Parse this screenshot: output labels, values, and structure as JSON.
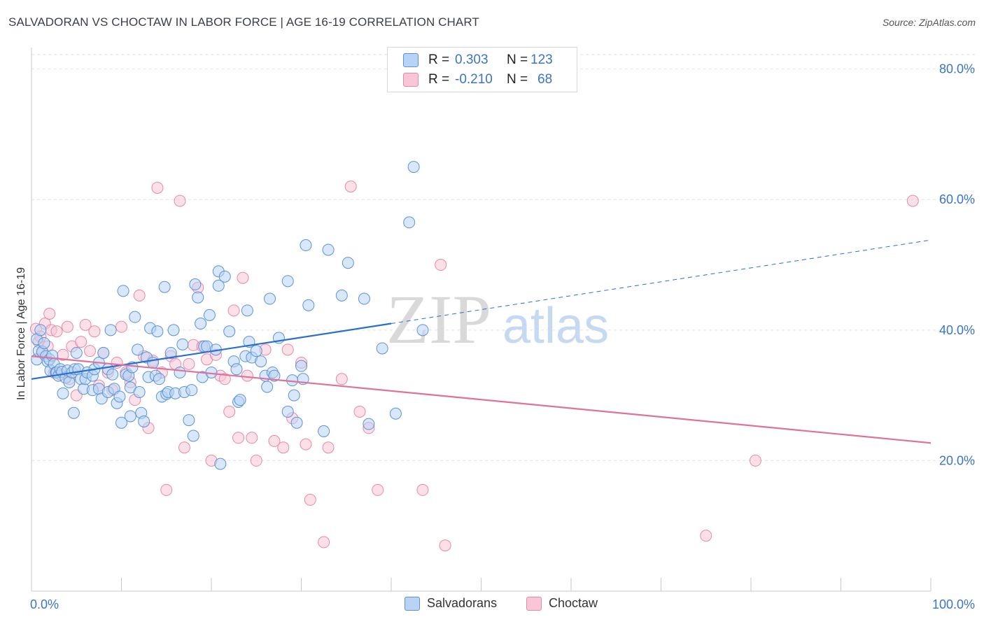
{
  "title": "SALVADORAN VS CHOCTAW IN LABOR FORCE | AGE 16-19 CORRELATION CHART",
  "source": "Source: ZipAtlas.com",
  "watermark": {
    "zip": "ZIP",
    "atlas": "atlas"
  },
  "colors": {
    "blue_fill": "#b8d3f5",
    "blue_stroke": "#5b93d6",
    "blue_line": "#2a6fcf",
    "pink_fill": "#f8c6d6",
    "pink_stroke": "#e48aa9",
    "pink_line": "#e0719a",
    "tick_label": "#3a74c9",
    "grid": "#e2e2e2"
  },
  "legend": {
    "rows": [
      {
        "r_label": "R =",
        "r_value": "0.303",
        "n_label": "N =",
        "n_value": "123",
        "color": "blue"
      },
      {
        "r_label": "R =",
        "r_value": "-0.210",
        "n_label": "N =",
        "n_value": "68",
        "color": "pink"
      }
    ],
    "bottom": [
      {
        "label": "Salvadorans",
        "color": "blue"
      },
      {
        "label": "Choctaw",
        "color": "pink"
      }
    ]
  },
  "chart_data": {
    "type": "scatter",
    "title": "SALVADORAN VS CHOCTAW IN LABOR FORCE | AGE 16-19 CORRELATION CHART",
    "xlabel": "",
    "ylabel": "In Labor Force | Age 16-19",
    "xlim": [
      0,
      100
    ],
    "ylim": [
      0,
      82
    ],
    "x_tick_labels": [
      {
        "value": 0,
        "label": "0.0%"
      },
      {
        "value": 100,
        "label": "100.0%"
      }
    ],
    "y_tick_labels": [
      {
        "value": 20,
        "label": "20.0%"
      },
      {
        "value": 40,
        "label": "40.0%"
      },
      {
        "value": 60,
        "label": "60.0%"
      },
      {
        "value": 80,
        "label": "80.0%"
      }
    ],
    "grid": true,
    "series": [
      {
        "name": "Salvadorans",
        "color": "blue",
        "trend": {
          "x0": 0,
          "y0": 32.5,
          "x1": 40,
          "y1": 41,
          "dashed_to_x": 100,
          "dashed_to_y": 53.8
        },
        "points": [
          [
            0.6,
            38.6
          ],
          [
            0.6,
            35.5
          ],
          [
            0.8,
            36.8
          ],
          [
            1.0,
            40.0
          ],
          [
            1.2,
            36.7
          ],
          [
            1.4,
            38.0
          ],
          [
            1.6,
            36.0
          ],
          [
            1.8,
            35.2
          ],
          [
            2.0,
            35.5
          ],
          [
            2.1,
            33.8
          ],
          [
            2.3,
            36.1
          ],
          [
            2.5,
            34.8
          ],
          [
            2.7,
            33.5
          ],
          [
            2.8,
            33.5
          ],
          [
            3.0,
            33.0
          ],
          [
            3.2,
            34.0
          ],
          [
            3.4,
            33.6
          ],
          [
            3.5,
            30.3
          ],
          [
            3.8,
            32.7
          ],
          [
            4.0,
            33.8
          ],
          [
            4.2,
            32.0
          ],
          [
            4.5,
            33.5
          ],
          [
            4.7,
            27.3
          ],
          [
            4.8,
            34.0
          ],
          [
            5.0,
            36.5
          ],
          [
            5.2,
            34.0
          ],
          [
            5.5,
            32.5
          ],
          [
            5.8,
            31.0
          ],
          [
            6.0,
            32.5
          ],
          [
            6.2,
            33.5
          ],
          [
            6.8,
            33.0
          ],
          [
            6.8,
            30.8
          ],
          [
            7.0,
            34.0
          ],
          [
            7.5,
            35.0
          ],
          [
            7.5,
            31.0
          ],
          [
            7.8,
            29.5
          ],
          [
            8.0,
            36.5
          ],
          [
            8.5,
            30.5
          ],
          [
            8.5,
            34.0
          ],
          [
            8.8,
            40.0
          ],
          [
            9.0,
            33.2
          ],
          [
            9.2,
            31.0
          ],
          [
            9.5,
            28.8
          ],
          [
            9.8,
            29.8
          ],
          [
            10.0,
            25.8
          ],
          [
            10.2,
            46.0
          ],
          [
            10.5,
            33.2
          ],
          [
            10.8,
            33.0
          ],
          [
            11.0,
            26.8
          ],
          [
            11.0,
            31.2
          ],
          [
            11.2,
            34.3
          ],
          [
            11.5,
            42.0
          ],
          [
            11.8,
            37.0
          ],
          [
            12.0,
            30.5
          ],
          [
            12.2,
            27.3
          ],
          [
            12.5,
            26.0
          ],
          [
            12.8,
            35.8
          ],
          [
            13.0,
            32.8
          ],
          [
            13.2,
            40.3
          ],
          [
            13.5,
            35.0
          ],
          [
            13.8,
            33.0
          ],
          [
            14.0,
            39.8
          ],
          [
            14.2,
            32.5
          ],
          [
            14.5,
            29.8
          ],
          [
            14.8,
            46.6
          ],
          [
            15.0,
            30.2
          ],
          [
            15.2,
            30.5
          ],
          [
            15.5,
            36.5
          ],
          [
            15.8,
            40.0
          ],
          [
            16.0,
            30.3
          ],
          [
            16.5,
            33.5
          ],
          [
            16.8,
            37.8
          ],
          [
            17.0,
            30.5
          ],
          [
            17.5,
            26.2
          ],
          [
            17.8,
            30.8
          ],
          [
            18.0,
            23.8
          ],
          [
            18.2,
            47.0
          ],
          [
            18.5,
            45.0
          ],
          [
            18.8,
            41.0
          ],
          [
            19.0,
            32.8
          ],
          [
            19.2,
            37.5
          ],
          [
            19.5,
            37.5
          ],
          [
            19.8,
            42.3
          ],
          [
            20.0,
            33.5
          ],
          [
            20.5,
            37.0
          ],
          [
            20.8,
            49.0
          ],
          [
            20.8,
            46.8
          ],
          [
            21.0,
            19.5
          ],
          [
            21.5,
            48.2
          ],
          [
            22.0,
            39.8
          ],
          [
            22.5,
            35.2
          ],
          [
            22.8,
            34.0
          ],
          [
            23.0,
            29.0
          ],
          [
            23.2,
            29.3
          ],
          [
            23.8,
            36.0
          ],
          [
            24.0,
            43.0
          ],
          [
            24.2,
            38.2
          ],
          [
            24.5,
            35.8
          ],
          [
            25.0,
            36.8
          ],
          [
            25.5,
            35.2
          ],
          [
            26.0,
            33.0
          ],
          [
            26.2,
            31.3
          ],
          [
            26.5,
            44.8
          ],
          [
            26.8,
            33.5
          ],
          [
            27.0,
            33.0
          ],
          [
            27.5,
            38.8
          ],
          [
            28.5,
            47.5
          ],
          [
            28.5,
            27.5
          ],
          [
            29.0,
            32.3
          ],
          [
            29.2,
            30.0
          ],
          [
            29.5,
            25.8
          ],
          [
            30.0,
            34.5
          ],
          [
            30.2,
            32.5
          ],
          [
            30.5,
            53.0
          ],
          [
            30.8,
            43.8
          ],
          [
            32.5,
            24.5
          ],
          [
            33.0,
            52.3
          ],
          [
            34.5,
            45.3
          ],
          [
            35.2,
            50.3
          ],
          [
            37.0,
            44.8
          ],
          [
            37.5,
            25.6
          ],
          [
            39.0,
            37.2
          ],
          [
            40.5,
            27.2
          ],
          [
            42.0,
            56.5
          ],
          [
            42.5,
            65.0
          ],
          [
            43.5,
            40.0
          ]
        ]
      },
      {
        "name": "Choctaw",
        "color": "pink",
        "trend": {
          "x0": 0,
          "y0": 36.0,
          "x1": 100,
          "y1": 22.7
        },
        "points": [
          [
            0.5,
            40.2
          ],
          [
            0.8,
            38.2
          ],
          [
            1.0,
            39.0
          ],
          [
            1.2,
            36.5
          ],
          [
            1.5,
            41.0
          ],
          [
            1.8,
            37.5
          ],
          [
            2.0,
            42.5
          ],
          [
            2.2,
            40.0
          ],
          [
            2.5,
            33.5
          ],
          [
            2.8,
            39.8
          ],
          [
            3.2,
            33.2
          ],
          [
            3.5,
            36.2
          ],
          [
            4.0,
            40.5
          ],
          [
            4.2,
            32.5
          ],
          [
            4.5,
            37.5
          ],
          [
            5.0,
            30.0
          ],
          [
            5.5,
            38.2
          ],
          [
            6.0,
            40.8
          ],
          [
            6.5,
            36.8
          ],
          [
            7.0,
            39.8
          ],
          [
            7.5,
            31.5
          ],
          [
            8.0,
            36.5
          ],
          [
            8.5,
            33.5
          ],
          [
            9.0,
            30.8
          ],
          [
            9.5,
            35.0
          ],
          [
            10.0,
            40.5
          ],
          [
            10.5,
            33.5
          ],
          [
            11.0,
            32.0
          ],
          [
            11.5,
            29.3
          ],
          [
            12.0,
            45.3
          ],
          [
            12.5,
            36.0
          ],
          [
            13.0,
            25.0
          ],
          [
            13.5,
            35.3
          ],
          [
            14.0,
            61.8
          ],
          [
            14.5,
            33.5
          ],
          [
            15.0,
            15.5
          ],
          [
            15.5,
            36.0
          ],
          [
            16.0,
            34.8
          ],
          [
            16.5,
            59.8
          ],
          [
            17.0,
            22.0
          ],
          [
            17.5,
            34.8
          ],
          [
            18.0,
            37.7
          ],
          [
            18.5,
            46.5
          ],
          [
            19.0,
            37.5
          ],
          [
            19.5,
            35.5
          ],
          [
            20.0,
            20.0
          ],
          [
            20.5,
            36.2
          ],
          [
            21.0,
            33.0
          ],
          [
            21.5,
            32.5
          ],
          [
            22.0,
            27.5
          ],
          [
            22.5,
            43.0
          ],
          [
            23.0,
            23.5
          ],
          [
            23.5,
            48.0
          ],
          [
            24.0,
            33.0
          ],
          [
            24.5,
            23.5
          ],
          [
            25.0,
            20.0
          ],
          [
            26.0,
            37.0
          ],
          [
            27.0,
            23.0
          ],
          [
            28.0,
            22.0
          ],
          [
            28.5,
            37.0
          ],
          [
            29.0,
            26.5
          ],
          [
            30.0,
            35.0
          ],
          [
            30.5,
            22.5
          ],
          [
            31.0,
            14.0
          ],
          [
            32.5,
            7.5
          ],
          [
            33.0,
            22.0
          ],
          [
            34.5,
            32.5
          ],
          [
            35.5,
            62.0
          ],
          [
            36.5,
            27.5
          ],
          [
            37.5,
            25.0
          ],
          [
            38.5,
            15.5
          ],
          [
            43.5,
            15.5
          ],
          [
            45.5,
            50.0
          ],
          [
            46.0,
            7.0
          ],
          [
            75.0,
            8.5
          ],
          [
            80.5,
            20.0
          ],
          [
            98.0,
            59.8
          ]
        ]
      }
    ]
  }
}
